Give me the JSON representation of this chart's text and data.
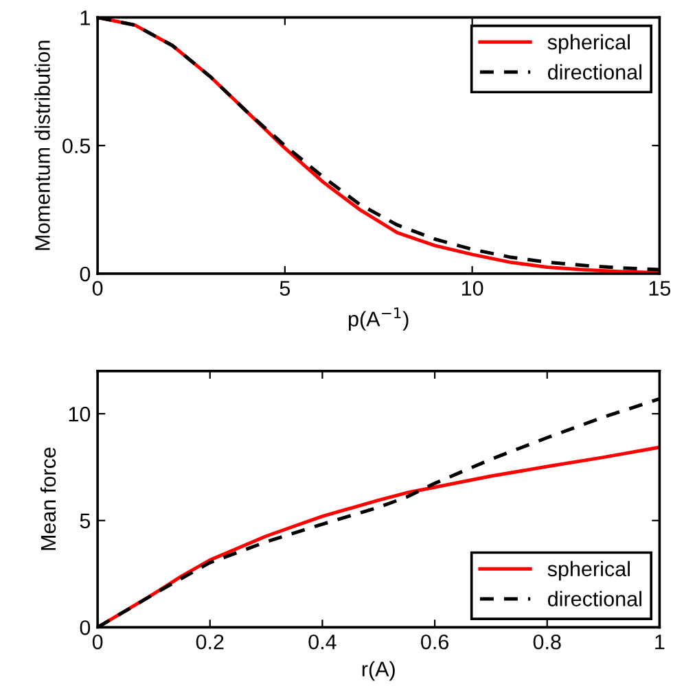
{
  "chart_data": [
    {
      "type": "line",
      "xlabel": "p(A$^{−1}$)",
      "ylabel": "Momentum distribution",
      "xlim": [
        0,
        15
      ],
      "ylim": [
        0,
        1
      ],
      "xticks": [
        0,
        5,
        10,
        15
      ],
      "yticks": [
        0,
        0.5,
        1
      ],
      "legend": "top right",
      "grid": false,
      "x": [
        0,
        1,
        2,
        3,
        4,
        5,
        6,
        7,
        8,
        9,
        10,
        11,
        12,
        13,
        14,
        15
      ],
      "series": [
        {
          "name": "spherical",
          "color": "#ff0000",
          "line_style": "solid",
          "values": [
            1,
            0.97,
            0.89,
            0.77,
            0.63,
            0.49,
            0.36,
            0.25,
            0.16,
            0.11,
            0.075,
            0.045,
            0.025,
            0.015,
            0.008,
            0.004
          ]
        },
        {
          "name": "directional",
          "color": "#000000",
          "line_style": "dashed",
          "values": [
            1,
            0.97,
            0.89,
            0.77,
            0.63,
            0.5,
            0.38,
            0.27,
            0.19,
            0.135,
            0.095,
            0.065,
            0.045,
            0.032,
            0.022,
            0.016
          ]
        }
      ]
    },
    {
      "type": "line",
      "xlabel": "r(A)",
      "ylabel": "Mean force",
      "xlim": [
        0,
        1
      ],
      "ylim": [
        0,
        12
      ],
      "xticks": [
        0,
        0.2,
        0.4,
        0.6,
        0.8,
        1
      ],
      "yticks": [
        0,
        5,
        10
      ],
      "legend": "bottom right",
      "grid": false,
      "x": [
        0,
        0.05,
        0.1,
        0.15,
        0.2,
        0.3,
        0.4,
        0.5,
        0.55,
        0.6,
        0.7,
        0.8,
        0.9,
        1.0
      ],
      "series": [
        {
          "name": "spherical",
          "color": "#ff0000",
          "line_style": "solid",
          "values": [
            0,
            0.78,
            1.57,
            2.4,
            3.15,
            4.27,
            5.2,
            5.95,
            6.3,
            6.56,
            7.08,
            7.53,
            7.96,
            8.43
          ]
        },
        {
          "name": "directional",
          "color": "#000000",
          "line_style": "dashed",
          "values": [
            0,
            0.77,
            1.55,
            2.3,
            3.03,
            4.0,
            4.83,
            5.62,
            6.1,
            6.74,
            7.87,
            8.88,
            9.84,
            10.7
          ]
        }
      ]
    }
  ]
}
